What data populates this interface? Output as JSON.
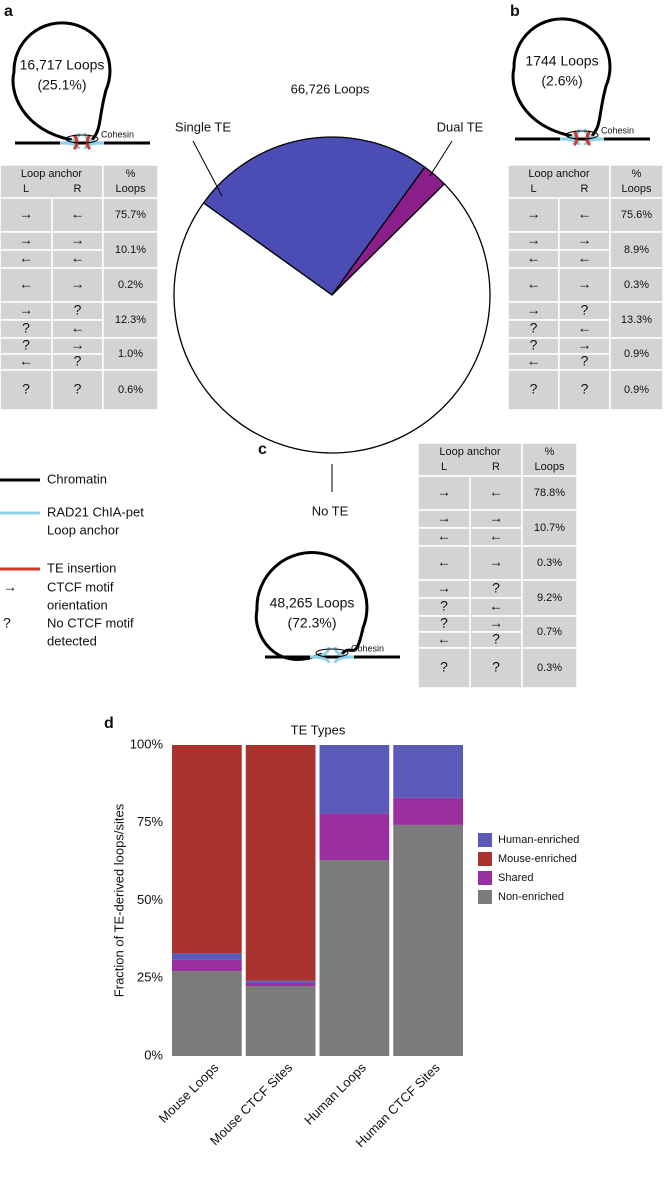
{
  "panel_labels": [
    "a",
    "b",
    "c",
    "d"
  ],
  "loops": [
    {
      "count": "16,717 Loops",
      "percent": "(25.1%)",
      "cohesin": "Cohesin"
    },
    {
      "count": "1744 Loops",
      "percent": "(2.6%)",
      "cohesin": "Cohesin"
    },
    {
      "count": "48,265 Loops",
      "percent": "(72.3%)",
      "cohesin": "Cohesin"
    }
  ],
  "tables": [
    {
      "header": {
        "anchor": "Loop anchor",
        "left": "L",
        "right": "R",
        "percent": "%",
        "loops": "Loops"
      },
      "rows": [
        {
          "anchors": [
            [
              "→",
              "←"
            ]
          ],
          "percent": "75.7%"
        },
        {
          "anchors": [
            [
              "→",
              "→"
            ],
            [
              "←",
              "←"
            ]
          ],
          "percent": "10.1%"
        },
        {
          "anchors": [
            [
              "←",
              "→"
            ]
          ],
          "percent": "0.2%"
        },
        {
          "anchors": [
            [
              "→",
              "?"
            ],
            [
              "?",
              "←"
            ]
          ],
          "percent": "12.3%"
        },
        {
          "anchors": [
            [
              "?",
              "→"
            ],
            [
              "←",
              "?"
            ]
          ],
          "percent": "1.0%"
        },
        {
          "anchors": [
            [
              "?",
              "?"
            ]
          ],
          "percent": "0.6%"
        }
      ]
    },
    {
      "header": {
        "anchor": "Loop anchor",
        "left": "L",
        "right": "R",
        "percent": "%",
        "loops": "Loops"
      },
      "rows": [
        {
          "anchors": [
            [
              "→",
              "←"
            ]
          ],
          "percent": "75.6%"
        },
        {
          "anchors": [
            [
              "→",
              "→"
            ],
            [
              "←",
              "←"
            ]
          ],
          "percent": "8.9%"
        },
        {
          "anchors": [
            [
              "←",
              "→"
            ]
          ],
          "percent": "0.3%"
        },
        {
          "anchors": [
            [
              "→",
              "?"
            ],
            [
              "?",
              "←"
            ]
          ],
          "percent": "13.3%"
        },
        {
          "anchors": [
            [
              "?",
              "→"
            ],
            [
              "←",
              "?"
            ]
          ],
          "percent": "0.9%"
        },
        {
          "anchors": [
            [
              "?",
              "?"
            ]
          ],
          "percent": "0.9%"
        }
      ]
    },
    {
      "header": {
        "anchor": "Loop anchor",
        "left": "L",
        "right": "R",
        "percent": "%",
        "loops": "Loops"
      },
      "rows": [
        {
          "anchors": [
            [
              "→",
              "←"
            ]
          ],
          "percent": "78.8%"
        },
        {
          "anchors": [
            [
              "→",
              "→"
            ],
            [
              "←",
              "←"
            ]
          ],
          "percent": "10.7%"
        },
        {
          "anchors": [
            [
              "←",
              "→"
            ]
          ],
          "percent": "0.3%"
        },
        {
          "anchors": [
            [
              "→",
              "?"
            ],
            [
              "?",
              "←"
            ]
          ],
          "percent": "9.2%"
        },
        {
          "anchors": [
            [
              "?",
              "→"
            ],
            [
              "←",
              "?"
            ]
          ],
          "percent": "0.7%"
        },
        {
          "anchors": [
            [
              "?",
              "?"
            ]
          ],
          "percent": "0.3%"
        }
      ]
    }
  ],
  "legend": [
    {
      "lines": [
        "Chromatin"
      ],
      "color": "#000000"
    },
    {
      "lines": [
        "RAD21 ChIA-pet",
        "Loop anchor"
      ],
      "color": "#8fd0ea"
    },
    {
      "lines": [
        "TE insertion"
      ],
      "color": "#d03a2a"
    },
    {
      "lines": [
        "CTCF motif",
        "orientation"
      ],
      "symbol": "→"
    },
    {
      "lines": [
        "No CTCF motif",
        "detected"
      ],
      "symbol": "?"
    }
  ],
  "chart_data": [
    {
      "type": "pie",
      "title": "66,726 Loops",
      "categories": [
        "Single TE",
        "Dual TE",
        "No TE"
      ],
      "values": [
        25.1,
        2.6,
        72.3
      ],
      "colors": [
        "#4b4db5",
        "#8a1f8c",
        "#ffffff"
      ]
    },
    {
      "type": "bar",
      "stacked": true,
      "title": "TE Types",
      "y_label": "Fraction of TE-derived loops/sites",
      "categories": [
        "Mouse Loops",
        "Mouse CTCF Sites",
        "Human Loops",
        "Human CTCF Sites"
      ],
      "series": [
        {
          "name": "Human-enriched",
          "color": "#5a5bb8",
          "values": [
            2,
            0.7,
            22,
            17
          ]
        },
        {
          "name": "Mouse-enriched",
          "color": "#a8332e",
          "values": [
            67,
            75.8,
            0,
            0
          ]
        },
        {
          "name": "Shared",
          "color": "#9a30a0",
          "values": [
            3.7,
            1,
            15,
            8.7
          ]
        },
        {
          "name": "Non-enriched",
          "color": "#7b7b7b",
          "values": [
            27.3,
            22.5,
            63,
            74.3
          ]
        }
      ],
      "stack_order": [
        3,
        2,
        0,
        1
      ],
      "ylim": [
        0,
        100
      ],
      "yticks": [
        {
          "value": 0,
          "label": "0%"
        },
        {
          "value": 25,
          "label": "25%"
        },
        {
          "value": 50,
          "label": "50%"
        },
        {
          "value": 75,
          "label": "75%"
        },
        {
          "value": 100,
          "label": "100%"
        }
      ]
    }
  ]
}
